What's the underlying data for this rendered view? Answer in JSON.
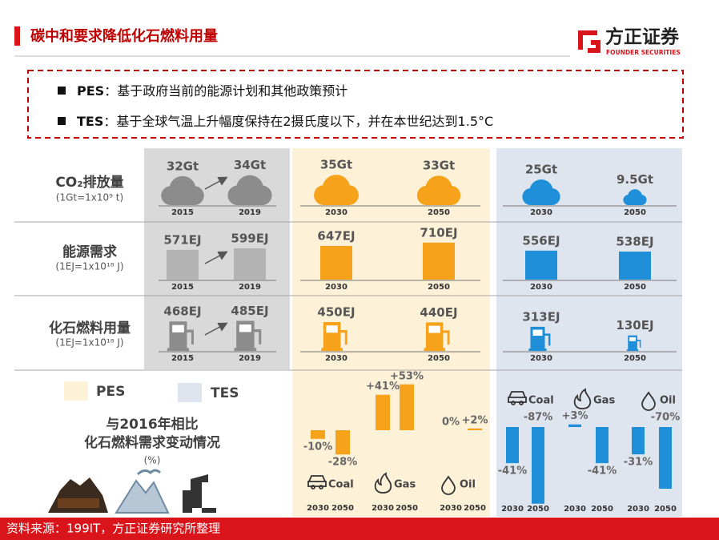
{
  "header": {
    "title": "碳中和要求降低化石燃料用量",
    "logo": "方正证券",
    "logo_sub": "FOUNDER SECURITIES"
  },
  "notes": [
    {
      "term": "PES",
      "text": "：基于政府当前的能源计划和其他政策预计"
    },
    {
      "term": "TES",
      "text": "：基于全球气温上升幅度保持在2摄氏度以下，并在本世纪达到1.5°C"
    }
  ],
  "rows": [
    {
      "label": "CO₂排放量",
      "unit": "(1Gt=1x10⁹ t)",
      "kind": "cloud",
      "years": [
        "2015",
        "2019",
        "2030",
        "2050",
        "2030",
        "2050"
      ],
      "values": [
        32,
        34,
        35,
        33,
        25,
        9.5
      ],
      "value_labels": [
        "32Gt",
        "34Gt",
        "35Gt",
        "33Gt",
        "25Gt",
        "9.5Gt"
      ],
      "colors": [
        "#8c8c8c",
        "#8c8c8c",
        "#f7a21b",
        "#f7a21b",
        "#1e8fd8",
        "#1e8fd8"
      ]
    },
    {
      "label": "能源需求",
      "unit": "(1EJ=1x10¹⁸ J)",
      "kind": "bar",
      "years": [
        "2015",
        "2019",
        "2030",
        "2050",
        "2030",
        "2050"
      ],
      "values": [
        571,
        599,
        647,
        710,
        556,
        538
      ],
      "value_labels": [
        "571EJ",
        "599EJ",
        "647EJ",
        "710EJ",
        "556EJ",
        "538EJ"
      ],
      "colors": [
        "#b3b3b3",
        "#b3b3b3",
        "#f7a21b",
        "#f7a21b",
        "#1e8fd8",
        "#1e8fd8"
      ]
    },
    {
      "label": "化石燃料用量",
      "unit": "(1EJ=1x10¹⁸ J)",
      "kind": "pump",
      "years": [
        "2015",
        "2019",
        "2030",
        "2050",
        "2030",
        "2050"
      ],
      "values": [
        468,
        485,
        450,
        440,
        313,
        130
      ],
      "value_labels": [
        "468EJ",
        "485EJ",
        "450EJ",
        "440EJ",
        "313EJ",
        "130EJ"
      ],
      "colors": [
        "#8c8c8c",
        "#8c8c8c",
        "#f7a21b",
        "#f7a21b",
        "#1e8fd8",
        "#1e8fd8"
      ]
    }
  ],
  "change": {
    "title_lines": [
      "与2016年相比",
      "化石燃料需求变动情况"
    ],
    "unit": "(%)",
    "categories": [
      "Coal",
      "Gas",
      "Oil"
    ],
    "years": [
      "2030",
      "2050"
    ],
    "series": [
      {
        "name": "PES",
        "color": "#f7a21b",
        "values": [
          -10,
          -28,
          41,
          53,
          0,
          2
        ],
        "value_labels": [
          "-10%",
          "-28%",
          "+41%",
          "+53%",
          "0%",
          "+2%"
        ]
      },
      {
        "name": "TES",
        "color": "#1e8fd8",
        "values": [
          -41,
          -87,
          3,
          -41,
          -31,
          -70
        ],
        "value_labels": [
          "-41%",
          "-87%",
          "+3%",
          "-41%",
          "-31%",
          "-70%"
        ]
      }
    ]
  },
  "source": "资料来源：199IT，方正证券研究所整理"
}
